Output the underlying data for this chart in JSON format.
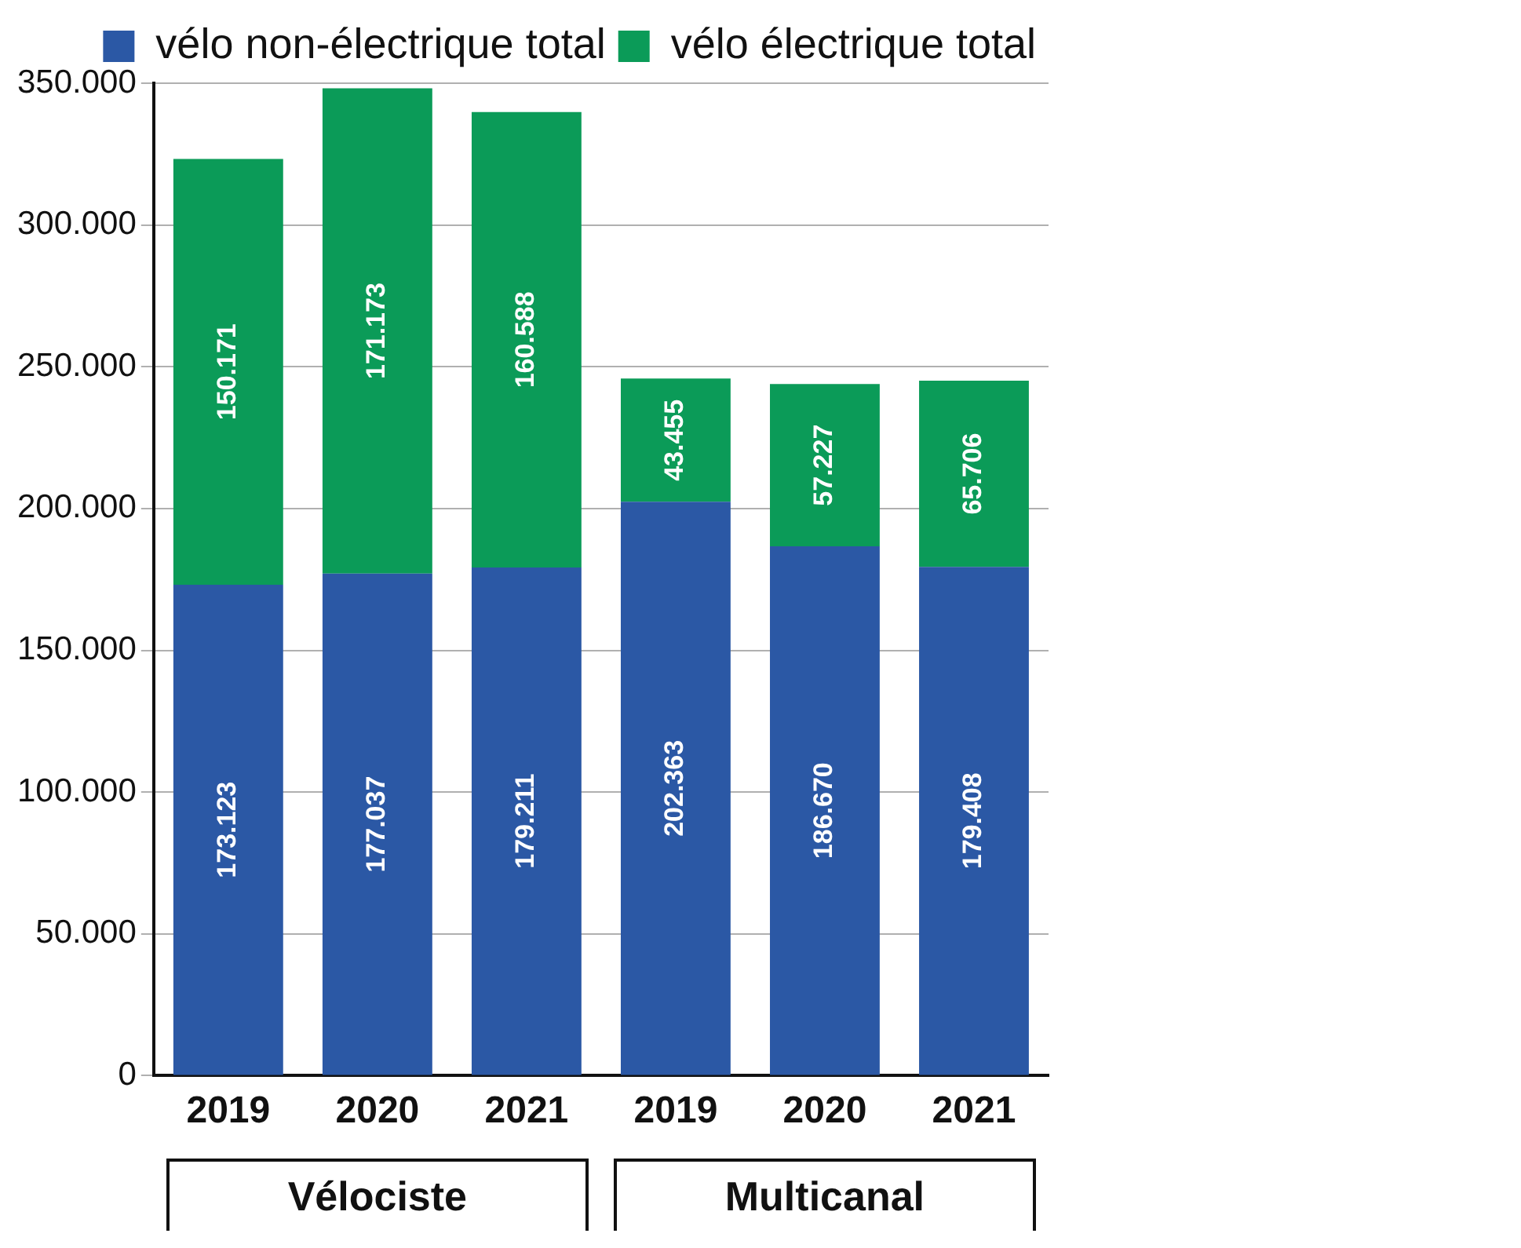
{
  "chart_data": {
    "type": "bar",
    "stacked": true,
    "categories": [
      "2019",
      "2020",
      "2021",
      "2019",
      "2020",
      "2021"
    ],
    "series": [
      {
        "name": "vélo non-électrique total",
        "color": "#2b58a5",
        "values": [
          173123,
          177037,
          179211,
          202363,
          186670,
          179408
        ],
        "value_labels": [
          "173.123",
          "177.037",
          "179.211",
          "202.363",
          "186.670",
          "179.408"
        ]
      },
      {
        "name": "vélo électrique total",
        "color": "#0b9b58",
        "values": [
          150171,
          171173,
          160588,
          43455,
          57227,
          65706
        ],
        "value_labels": [
          "150.171",
          "171.173",
          "160.588",
          "43.455",
          "57.227",
          "65.706"
        ]
      }
    ],
    "ylim": [
      0,
      350000
    ],
    "yticks": [
      0,
      {
        "value": 50000,
        "label": "50.000"
      },
      {
        "value": 100000,
        "label": "100.000"
      },
      {
        "value": 150000,
        "label": "150.000"
      },
      {
        "value": 200000,
        "label": "200.000"
      },
      {
        "value": 250000,
        "label": "250.000"
      },
      {
        "value": 300000,
        "label": "300.000"
      },
      {
        "value": 350000,
        "label": "350.000"
      }
    ],
    "grid": "y",
    "legend": "top right",
    "annotations": [
      "Vélociste",
      "Multicanal"
    ]
  }
}
